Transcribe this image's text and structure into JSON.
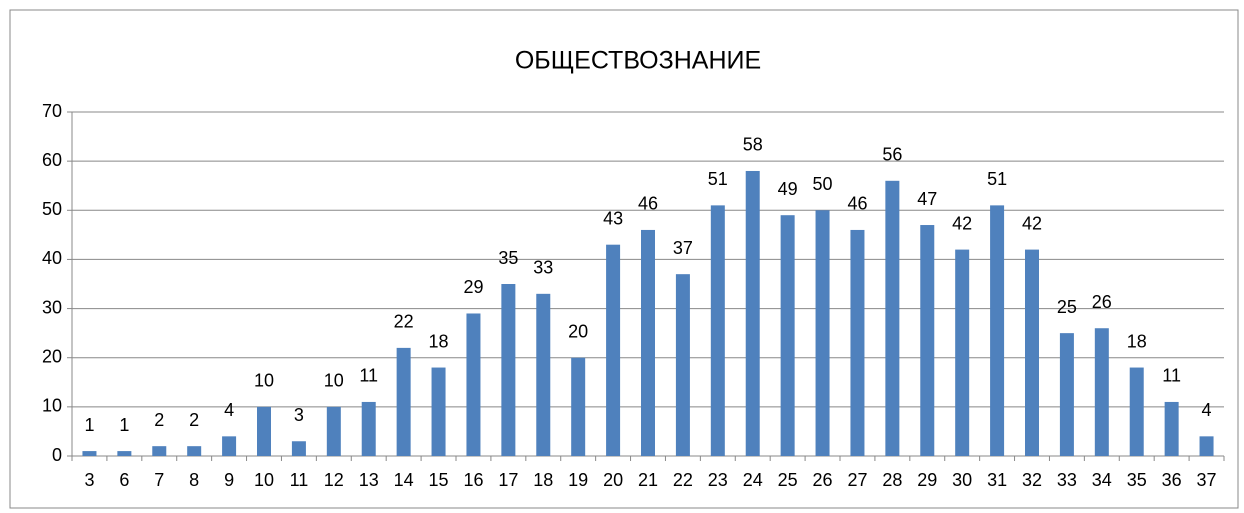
{
  "chart_data": {
    "type": "bar",
    "title": "ОБЩЕСТВОЗНАНИЕ",
    "categories": [
      "3",
      "6",
      "7",
      "8",
      "9",
      "10",
      "11",
      "12",
      "13",
      "14",
      "15",
      "16",
      "17",
      "18",
      "19",
      "20",
      "21",
      "22",
      "23",
      "24",
      "25",
      "26",
      "27",
      "28",
      "29",
      "30",
      "31",
      "32",
      "33",
      "34",
      "35",
      "36",
      "37"
    ],
    "values": [
      1,
      1,
      2,
      2,
      4,
      10,
      3,
      10,
      11,
      22,
      18,
      29,
      35,
      33,
      20,
      43,
      46,
      37,
      51,
      58,
      49,
      50,
      46,
      56,
      47,
      42,
      51,
      42,
      25,
      26,
      18,
      11,
      4
    ],
    "color": "#4f81bd",
    "ylim": [
      0,
      70
    ],
    "yticks": [
      0,
      10,
      20,
      30,
      40,
      50,
      60,
      70
    ],
    "grid": true
  }
}
